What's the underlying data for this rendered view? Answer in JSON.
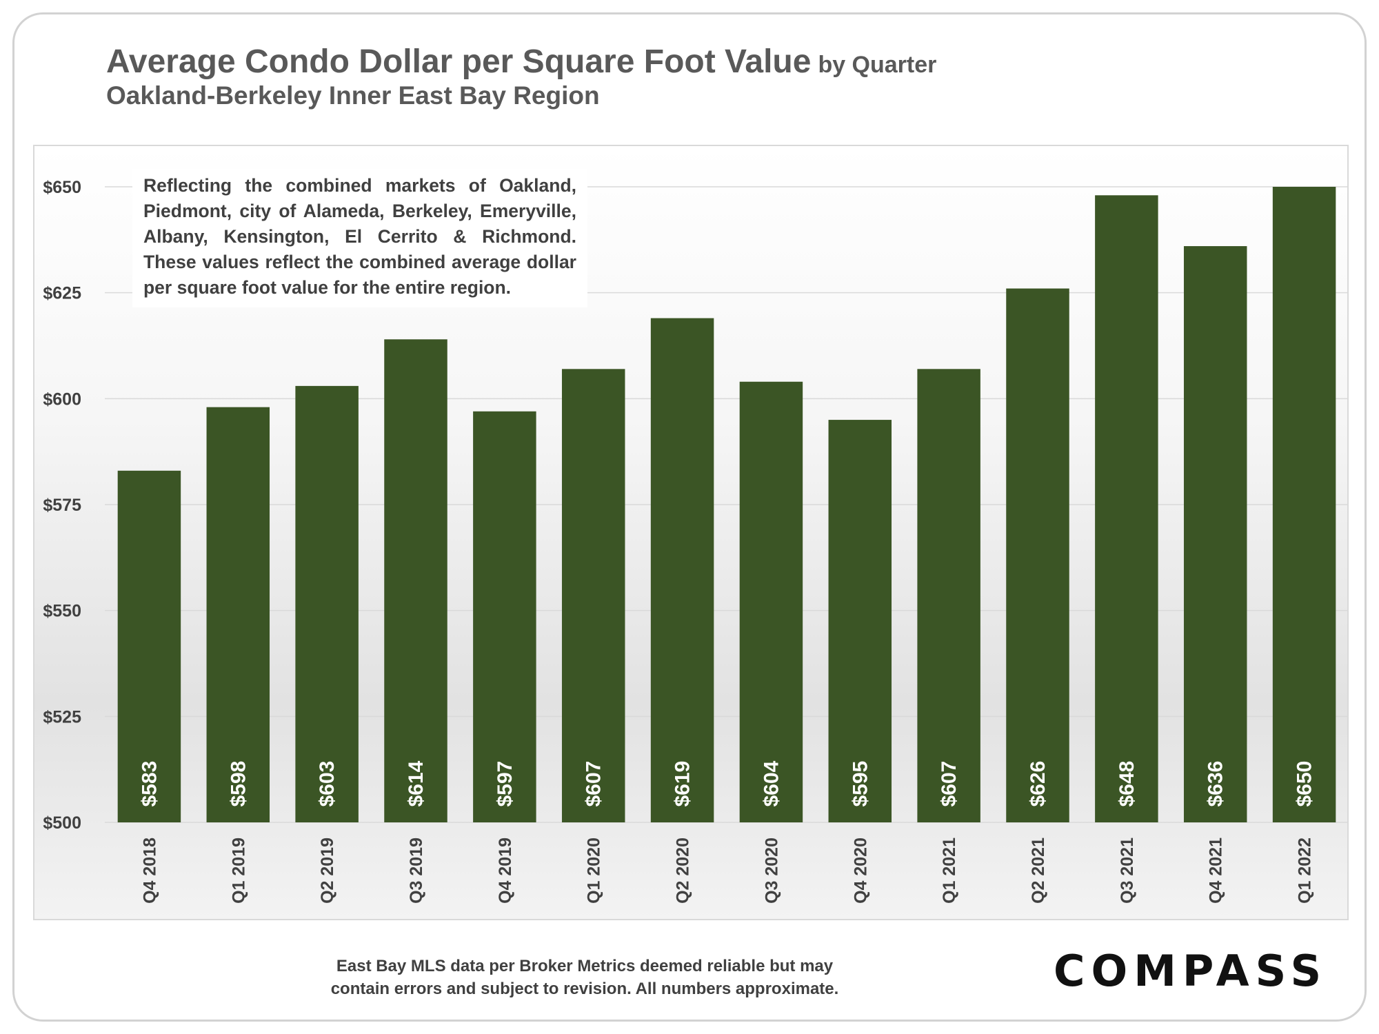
{
  "title": "Average Condo Dollar per Square Foot Value",
  "title_suffix": "by Quarter",
  "subtitle": "Oakland-Berkeley Inner East Bay Region",
  "note": "Reflecting the combined markets of Oakland, Piedmont, city of Alameda, Berkeley, Emeryville, Albany, Kensington, El Cerrito & Richmond. These values reflect the combined average dollar per square foot value for the entire region.",
  "source_line1": "East Bay MLS data per Broker Metrics  deemed reliable but may",
  "source_line2": "contain errors and subject to revision. All numbers approximate.",
  "logo": "COMPASS",
  "colors": {
    "bar": "#3b5525",
    "bar_label": "#ffffff",
    "axis_text": "#404040",
    "grid": "#d9d9d9"
  },
  "chart_data": {
    "type": "bar",
    "title": "Average Condo Dollar per Square Foot Value by Quarter",
    "subtitle": "Oakland-Berkeley Inner East Bay Region",
    "categories": [
      "Q4 2018",
      "Q1 2019",
      "Q2 2019",
      "Q3 2019",
      "Q4 2019",
      "Q1 2020",
      "Q2 2020",
      "Q3 2020",
      "Q4 2020",
      "Q1 2021",
      "Q2 2021",
      "Q3 2021",
      "Q4 2021",
      "Q1 2022"
    ],
    "values": [
      583,
      598,
      603,
      614,
      597,
      607,
      619,
      604,
      595,
      607,
      626,
      648,
      636,
      650
    ],
    "value_labels": [
      "$583",
      "$598",
      "$603",
      "$614",
      "$597",
      "$607",
      "$619",
      "$604",
      "$595",
      "$607",
      "$626",
      "$648",
      "$636",
      "$650"
    ],
    "ylim": [
      500,
      650
    ],
    "yticks": [
      500,
      525,
      550,
      575,
      600,
      625,
      650
    ],
    "ytick_labels": [
      "$500",
      "$525",
      "$550",
      "$575",
      "$600",
      "$625",
      "$650"
    ],
    "grid": true,
    "legend": false
  }
}
